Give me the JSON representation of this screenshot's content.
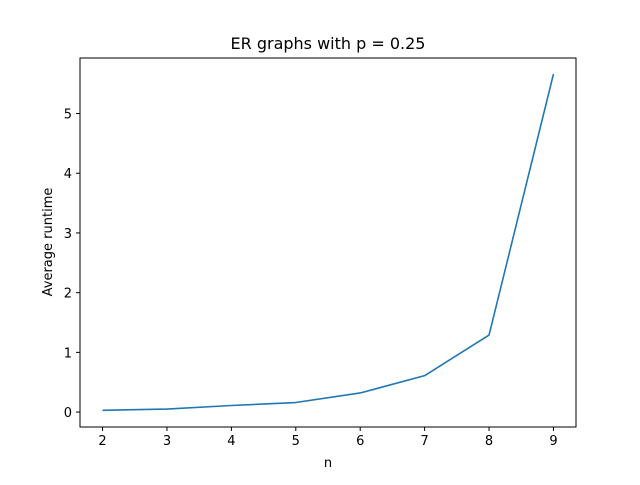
{
  "chart_data": {
    "type": "line",
    "title": "ER graphs with p = 0.25",
    "xlabel": "n",
    "ylabel": "Average runtime",
    "x": [
      2,
      3,
      4,
      5,
      6,
      7,
      8,
      9
    ],
    "series": [
      {
        "values": [
          0.03,
          0.05,
          0.11,
          0.16,
          0.32,
          0.61,
          1.29,
          5.66
        ],
        "color": "#1f77b4"
      }
    ],
    "xticks": [
      "2",
      "3",
      "4",
      "5",
      "6",
      "7",
      "8",
      "9"
    ],
    "yticks": [
      "0",
      "1",
      "2",
      "3",
      "4",
      "5"
    ],
    "xlim": [
      1.65,
      9.35
    ],
    "ylim": [
      -0.25,
      5.93
    ],
    "grid": false,
    "legend": "none"
  }
}
